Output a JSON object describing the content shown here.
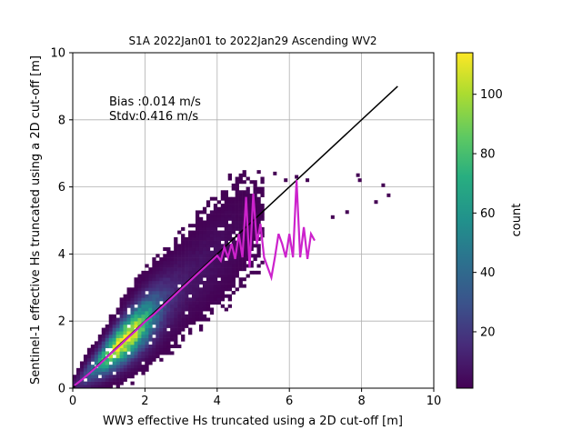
{
  "chart_data": {
    "type": "heatmap",
    "title": "S1A 2022Jan01 to 2022Jan29 Ascending WV2",
    "xlabel": "WW3 effective Hs truncated using a 2D cut-off [m]",
    "ylabel": "Sentinel-1 effective Hs truncated using a 2D cut-off [m]",
    "xlim": [
      0,
      10
    ],
    "ylim": [
      0,
      10
    ],
    "x_ticks": [
      "0",
      "2",
      "4",
      "6",
      "8",
      "10"
    ],
    "y_ticks": [
      "0",
      "2",
      "4",
      "6",
      "8",
      "10"
    ],
    "grid": true,
    "colormap": "viridis",
    "colorbar": {
      "label": "count",
      "range": [
        1,
        114
      ],
      "ticks": [
        "20",
        "40",
        "60",
        "80",
        "100"
      ]
    },
    "annotations": [
      "Bias :0.014 m/s",
      "Stdv:0.416 m/s"
    ],
    "reference_line": {
      "x": [
        0,
        9
      ],
      "y": [
        0,
        9
      ],
      "color": "#000000"
    },
    "mean_curve": {
      "color": "#cc22cc",
      "x": [
        0.05,
        0.25,
        0.5,
        0.75,
        1.0,
        1.25,
        1.5,
        1.75,
        2.0,
        2.25,
        2.5,
        2.75,
        3.0,
        3.25,
        3.5,
        3.75,
        4.0,
        4.1,
        4.2,
        4.3,
        4.4,
        4.5,
        4.6,
        4.7,
        4.8,
        4.9,
        5.0,
        5.1,
        5.2,
        5.3,
        5.4,
        5.5,
        5.6,
        5.7,
        5.8,
        5.9,
        6.0,
        6.1,
        6.2,
        6.3,
        6.4,
        6.5,
        6.6,
        6.7
      ],
      "y": [
        0.08,
        0.25,
        0.48,
        0.72,
        0.98,
        1.22,
        1.48,
        1.72,
        1.98,
        2.2,
        2.45,
        2.7,
        2.95,
        3.2,
        3.45,
        3.7,
        3.95,
        3.8,
        4.2,
        3.9,
        4.3,
        3.85,
        4.6,
        3.9,
        5.7,
        3.6,
        5.8,
        4.3,
        4.9,
        3.9,
        3.6,
        3.3,
        3.9,
        4.6,
        4.3,
        3.9,
        4.6,
        3.9,
        6.2,
        3.9,
        4.8,
        3.85,
        4.6,
        4.4
      ]
    },
    "sparse_points": [
      [
        6.5,
        6.2
      ],
      [
        7.2,
        5.1
      ],
      [
        7.6,
        5.25
      ],
      [
        7.9,
        6.35
      ],
      [
        7.95,
        6.2
      ],
      [
        8.4,
        5.55
      ],
      [
        8.6,
        6.05
      ],
      [
        8.75,
        5.75
      ],
      [
        6.2,
        6.3
      ],
      [
        5.9,
        6.2
      ],
      [
        5.6,
        6.4
      ]
    ]
  }
}
